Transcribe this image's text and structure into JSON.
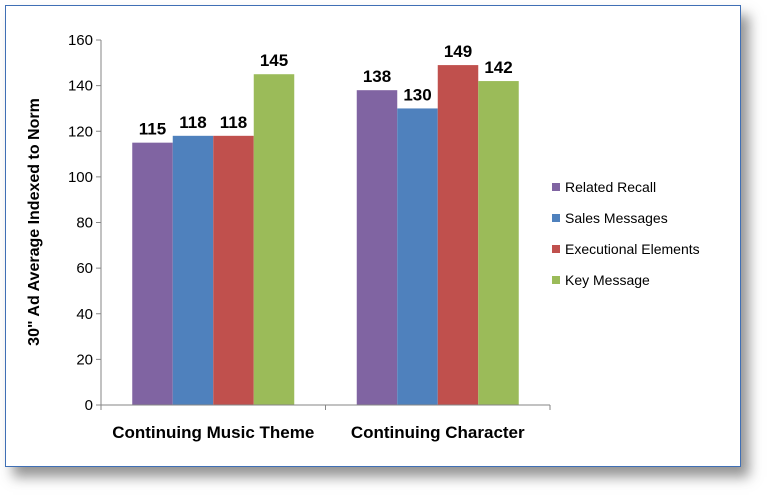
{
  "chart_data": {
    "type": "bar",
    "title": "",
    "xlabel": "",
    "ylabel": "30\" Ad Average Indexed to Norm",
    "ylim": [
      0,
      160
    ],
    "yticks": [
      0,
      20,
      40,
      60,
      80,
      100,
      120,
      140,
      160
    ],
    "grid": false,
    "legend_position": "right",
    "categories": [
      "Continuing Music Theme",
      "Continuing Character"
    ],
    "series": [
      {
        "name": "Related Recall",
        "color": "#8064a2",
        "values": [
          115,
          138
        ]
      },
      {
        "name": "Sales Messages",
        "color": "#4f81bd",
        "values": [
          118,
          130
        ]
      },
      {
        "name": "Executional Elements",
        "color": "#c0504d",
        "values": [
          118,
          149
        ]
      },
      {
        "name": "Key Message",
        "color": "#9bbb59",
        "values": [
          145,
          142
        ]
      }
    ]
  }
}
